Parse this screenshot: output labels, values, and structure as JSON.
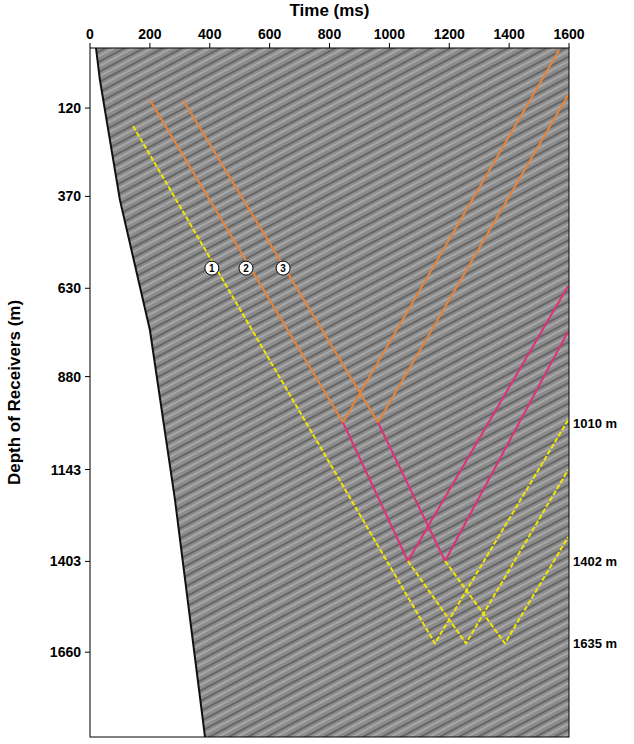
{
  "chart_data": {
    "type": "line",
    "x_label": "Time (ms)",
    "y_label": "Depth of Receivers (m)",
    "xlim": [
      0,
      1600
    ],
    "ylim": [
      -50,
      1900
    ],
    "xticks": [
      0,
      200,
      400,
      600,
      800,
      1000,
      1200,
      1400,
      1600
    ],
    "yticks": [
      120,
      370,
      630,
      880,
      1143,
      1403,
      1660
    ],
    "series": [
      {
        "type": "area",
        "color": "#8c8c8c",
        "x": [
          20,
          33,
          100,
          200,
          284,
          384
        ],
        "y": [
          -50,
          40,
          380,
          748,
          1229,
          1900
        ]
      },
      {
        "color": "#e8833a",
        "line_style": "solid",
        "x": [
          200,
          845,
          1567
        ],
        "y": [
          97,
          1010,
          -44
        ]
      },
      {
        "color": "#e8833a",
        "line_style": "solid",
        "x": [
          311,
          962,
          1597
        ],
        "y": [
          97,
          1010,
          83
        ]
      },
      {
        "color": "#e0307a",
        "line_style": "solid",
        "x": [
          845,
          1062,
          1597
        ],
        "y": [
          1010,
          1402,
          624
        ]
      },
      {
        "color": "#e0307a",
        "line_style": "solid",
        "x": [
          962,
          1186,
          1597
        ],
        "y": [
          1010,
          1402,
          752
        ]
      },
      {
        "color": "#f2e600",
        "line_style": "dashed",
        "x": [
          144,
          1152,
          1597
        ],
        "y": [
          171,
          1635,
          1003
        ]
      },
      {
        "color": "#f2e600",
        "line_style": "dashed",
        "x": [
          1062,
          1256,
          1597
        ],
        "y": [
          1402,
          1635,
          1144
        ]
      },
      {
        "color": "#f2e600",
        "line_style": "dashed",
        "x": [
          1186,
          1386,
          1597
        ],
        "y": [
          1402,
          1635,
          1334
        ]
      }
    ],
    "annotations": [
      {
        "text": "1",
        "x": 407,
        "y": 573
      },
      {
        "text": "2",
        "x": 521,
        "y": 573
      },
      {
        "text": "3",
        "x": 645,
        "y": 573
      }
    ],
    "depth_labels": [
      {
        "text": "1010 m",
        "y": 1010
      },
      {
        "text": "1402 m",
        "y": 1402
      },
      {
        "text": "1635 m",
        "y": 1635
      }
    ]
  }
}
